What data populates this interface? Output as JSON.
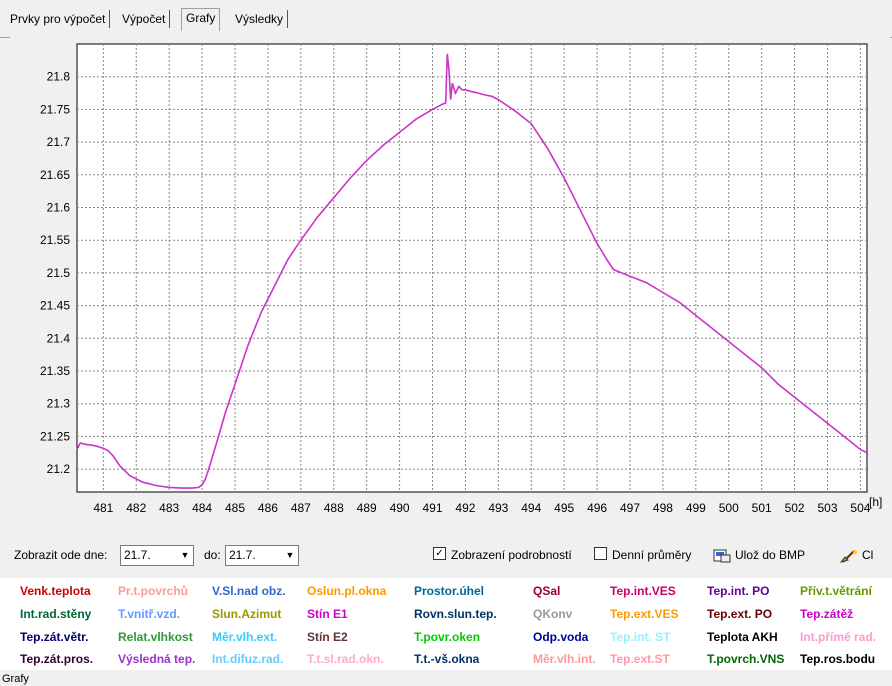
{
  "tabs": [
    {
      "label": "Prvky pro výpočet",
      "active": false
    },
    {
      "label": "Výpočet",
      "active": false
    },
    {
      "label": "Grafy",
      "active": true
    },
    {
      "label": "Výsledky",
      "active": false
    }
  ],
  "chart_data": {
    "type": "line",
    "title": "",
    "xlabel": "[h]",
    "ylabel": "",
    "xlim": [
      480.2,
      504.2
    ],
    "ylim": [
      21.165,
      21.85
    ],
    "xticks": [
      481,
      482,
      483,
      484,
      485,
      486,
      487,
      488,
      489,
      490,
      491,
      492,
      493,
      494,
      495,
      496,
      497,
      498,
      499,
      500,
      501,
      502,
      503,
      504
    ],
    "yticks": [
      21.2,
      21.25,
      21.3,
      21.35,
      21.4,
      21.45,
      21.5,
      21.55,
      21.6,
      21.65,
      21.7,
      21.75,
      21.8
    ],
    "grid": true,
    "series": [
      {
        "color": "#cc33cc",
        "x": [
          480.2,
          480.3,
          480.45,
          480.6,
          480.8,
          481.0,
          481.15,
          481.3,
          481.5,
          481.8,
          482.2,
          482.6,
          483.0,
          483.4,
          483.7,
          483.9,
          484.0,
          484.1,
          484.2,
          484.35,
          484.5,
          484.7,
          485.0,
          485.4,
          485.8,
          486.2,
          486.6,
          487.0,
          487.5,
          488.0,
          488.5,
          489.0,
          489.5,
          490.0,
          490.5,
          491.0,
          491.3,
          491.4,
          491.45,
          491.5,
          491.55,
          491.6,
          491.7,
          491.8,
          491.9,
          492.0,
          492.2,
          492.4,
          492.6,
          492.8,
          493.0,
          493.5,
          494.0,
          494.5,
          495.0,
          495.5,
          496.0,
          496.3,
          496.5,
          497.0,
          497.5,
          498.0,
          498.5,
          499.0,
          499.5,
          500.0,
          500.5,
          501.0,
          501.5,
          502.0,
          502.5,
          503.0,
          503.5,
          504.0,
          504.2
        ],
        "y": [
          21.23,
          21.24,
          21.238,
          21.237,
          21.235,
          21.232,
          21.228,
          21.22,
          21.205,
          21.19,
          21.18,
          21.175,
          21.172,
          21.171,
          21.171,
          21.172,
          21.176,
          21.185,
          21.2,
          21.225,
          21.25,
          21.285,
          21.33,
          21.39,
          21.44,
          21.48,
          21.52,
          21.55,
          21.585,
          21.615,
          21.645,
          21.672,
          21.695,
          21.715,
          21.735,
          21.75,
          21.758,
          21.76,
          21.835,
          21.81,
          21.765,
          21.79,
          21.775,
          21.785,
          21.78,
          21.78,
          21.777,
          21.775,
          21.772,
          21.77,
          21.765,
          21.748,
          21.728,
          21.69,
          21.645,
          21.595,
          21.545,
          21.52,
          21.505,
          21.495,
          21.485,
          21.47,
          21.455,
          21.435,
          21.415,
          21.395,
          21.375,
          21.355,
          21.33,
          21.31,
          21.29,
          21.27,
          21.25,
          21.23,
          21.225
        ]
      }
    ]
  },
  "controls": {
    "from_label": "Zobrazit ode dne:",
    "from_value": "21.7.",
    "to_label": "do:",
    "to_value": "21.7.",
    "details_label": "Zobrazení podrobností",
    "details_checked": "✓",
    "daily_avg_label": "Denní průměry",
    "save_bmp_label": "Ulož do BMP",
    "clear_label": "Cl"
  },
  "legend": [
    [
      {
        "t": "Venk.teplota",
        "c": "#cc0000"
      },
      {
        "t": "Pr.t.povrchů",
        "c": "#ff9999"
      },
      {
        "t": "V.Sl.nad obz.",
        "c": "#3366cc"
      },
      {
        "t": "Oslun.pl.okna",
        "c": "#ff9900"
      },
      {
        "t": "Prostor.úhel",
        "c": "#006699"
      },
      {
        "t": "QSal",
        "c": "#990033"
      },
      {
        "t": "Tep.int.VES",
        "c": "#cc0066"
      },
      {
        "t": "Tep.int. PO",
        "c": "#660099"
      },
      {
        "t": "Přív.t.větrání",
        "c": "#669900"
      }
    ],
    [
      {
        "t": "Int.rad.stěny",
        "c": "#006633"
      },
      {
        "t": "T.vnitř.vzd.",
        "c": "#6699ff"
      },
      {
        "t": "Slun.Azimut",
        "c": "#999900"
      },
      {
        "t": "Stín E1",
        "c": "#cc00cc"
      },
      {
        "t": "Rovn.slun.tep.",
        "c": "#003366"
      },
      {
        "t": "QKonv",
        "c": "#999999"
      },
      {
        "t": "Tep.ext.VES",
        "c": "#ff9900"
      },
      {
        "t": "Tep.ext. PO",
        "c": "#660000"
      },
      {
        "t": "Tep.zátěž",
        "c": "#cc00cc"
      }
    ],
    [
      {
        "t": "Tep.zát.větr.",
        "c": "#000066"
      },
      {
        "t": "Relat.vlhkost",
        "c": "#339933"
      },
      {
        "t": "Měr.vlh.ext.",
        "c": "#33ccff"
      },
      {
        "t": "Stín E2",
        "c": "#663333"
      },
      {
        "t": "T.povr.oken",
        "c": "#00cc00"
      },
      {
        "t": "Odp.voda",
        "c": "#000099"
      },
      {
        "t": "Tep.int. ST",
        "c": "#99eeff"
      },
      {
        "t": "Teplota AKH",
        "c": "#000000"
      },
      {
        "t": "Int.přímé rad.",
        "c": "#ff99cc"
      }
    ],
    [
      {
        "t": "Tep.zát.pros.",
        "c": "#330033"
      },
      {
        "t": "Výsledná tep.",
        "c": "#9933cc"
      },
      {
        "t": "Int.difuz.rad.",
        "c": "#66ccff"
      },
      {
        "t": "T.t.sl.rad.okn.",
        "c": "#ffaacc"
      },
      {
        "t": "T.t.-vš.okna",
        "c": "#003366"
      },
      {
        "t": "Měr.vlh.int.",
        "c": "#ff9999"
      },
      {
        "t": "Tep.ext.ST",
        "c": "#ff99aa"
      },
      {
        "t": "T.povrch.VNS",
        "c": "#006600"
      },
      {
        "t": "Tep.ros.bodu",
        "c": "#000000"
      }
    ]
  ],
  "status": "Grafy"
}
